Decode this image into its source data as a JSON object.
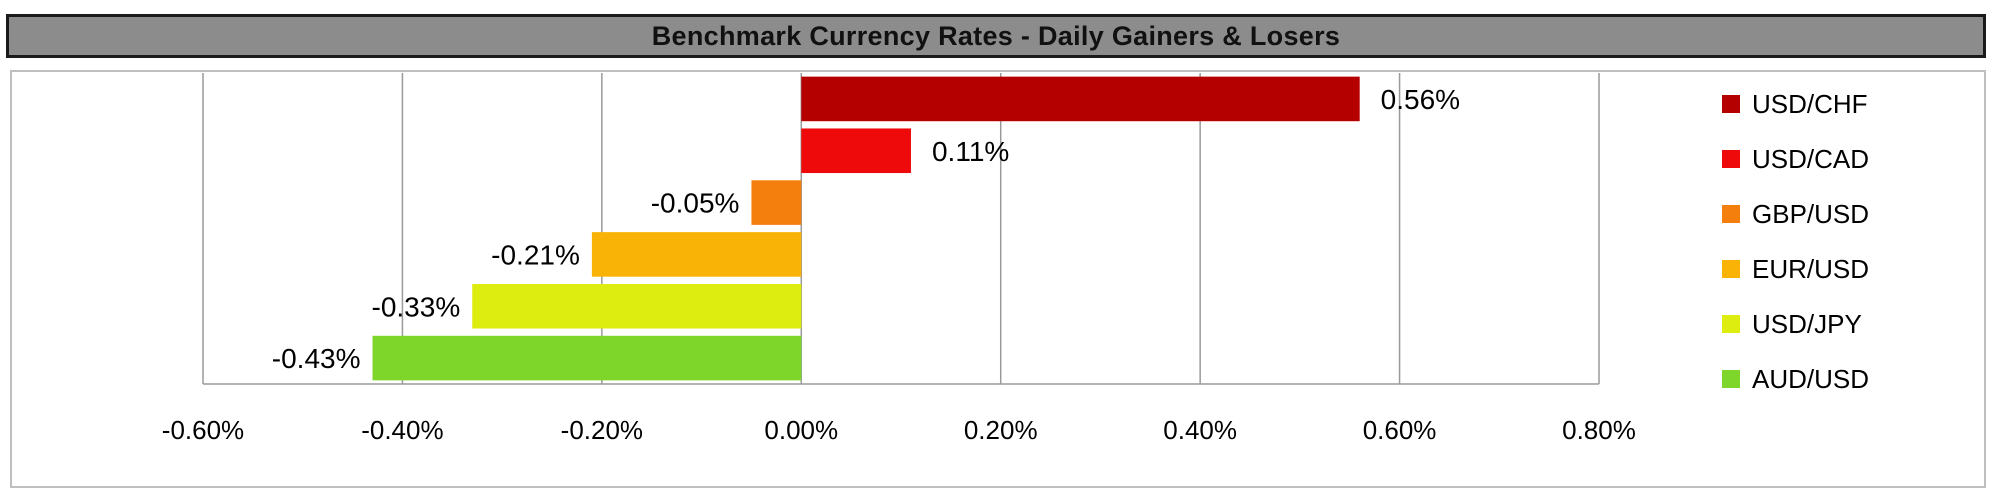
{
  "chart_data": {
    "type": "bar",
    "orientation": "horizontal",
    "title": "Benchmark Currency Rates - Daily Gainers & Losers",
    "xlabel": "",
    "ylabel": "",
    "xlim": [
      -0.006,
      0.008
    ],
    "xticks": [
      -0.006,
      -0.004,
      -0.002,
      0.0,
      0.002,
      0.004,
      0.006,
      0.008
    ],
    "xtick_labels": [
      "-0.60%",
      "-0.40%",
      "-0.20%",
      "0.00%",
      "0.20%",
      "0.40%",
      "0.60%",
      "0.80%"
    ],
    "grid": "vertical",
    "legend_position": "right",
    "series": [
      {
        "name": "USD/CHF",
        "value": 0.0056,
        "label": "0.56%",
        "color": "#b50000"
      },
      {
        "name": "USD/CAD",
        "value": 0.0011,
        "label": "0.11%",
        "color": "#ee0a0a"
      },
      {
        "name": "GBP/USD",
        "value": -0.0005,
        "label": "-0.05%",
        "color": "#f47f0c"
      },
      {
        "name": "EUR/USD",
        "value": -0.0021,
        "label": "-0.21%",
        "color": "#f9b307"
      },
      {
        "name": "USD/JPY",
        "value": -0.0033,
        "label": "-0.33%",
        "color": "#dced0f"
      },
      {
        "name": "AUD/USD",
        "value": -0.0043,
        "label": "-0.43%",
        "color": "#7fd62a"
      }
    ]
  }
}
